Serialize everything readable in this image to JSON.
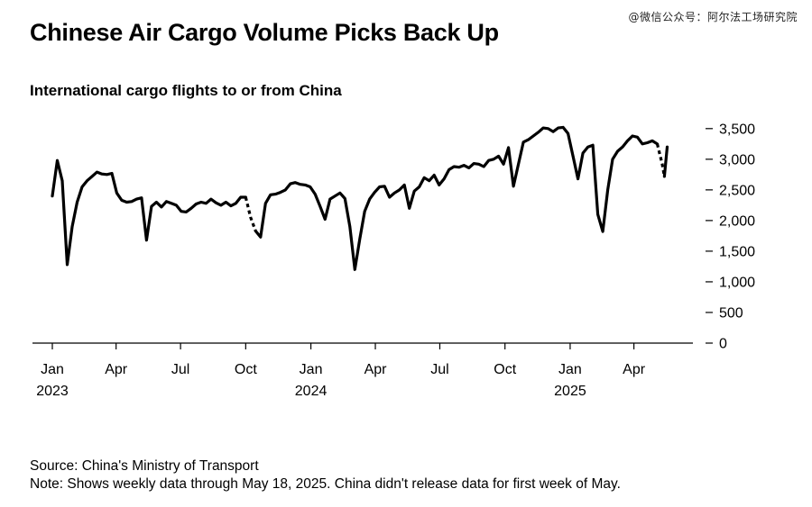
{
  "watermark": "@微信公众号：阿尔法工场研究院",
  "title": "Chinese Air Cargo Volume Picks Back Up",
  "subtitle": "International cargo flights to or from China",
  "source": "Source: China's Ministry of Transport",
  "note": "Note: Shows weekly data through May 18, 2025. China didn't release data for first week of May.",
  "chart_data": {
    "type": "line",
    "title": "Chinese Air Cargo Volume Picks Back Up",
    "subtitle": "International cargo flights to or from China",
    "ylim": [
      0,
      3600
    ],
    "yticks": [
      0,
      500,
      1000,
      1500,
      2000,
      2500,
      3000,
      3500
    ],
    "ytick_labels": [
      "0",
      "500",
      "1,000",
      "1,500",
      "2,000",
      "2,500",
      "3,000",
      "3,500"
    ],
    "xlim": [
      "2023-01-01",
      "2025-05-25"
    ],
    "xticks": [
      {
        "date": "2023-01-01",
        "label": "Jan",
        "year": "2023"
      },
      {
        "date": "2023-04-01",
        "label": "Apr",
        "year": ""
      },
      {
        "date": "2023-07-01",
        "label": "Jul",
        "year": ""
      },
      {
        "date": "2023-10-01",
        "label": "Oct",
        "year": ""
      },
      {
        "date": "2024-01-01",
        "label": "Jan",
        "year": "2024"
      },
      {
        "date": "2024-04-01",
        "label": "Apr",
        "year": ""
      },
      {
        "date": "2024-07-01",
        "label": "Jul",
        "year": ""
      },
      {
        "date": "2024-10-01",
        "label": "Oct",
        "year": ""
      },
      {
        "date": "2025-01-01",
        "label": "Jan",
        "year": "2025"
      },
      {
        "date": "2025-04-01",
        "label": "Apr",
        "year": ""
      }
    ],
    "grid": false,
    "series": [
      {
        "name": "",
        "color": "#000000",
        "segments": [
          {
            "style": "solid",
            "points": [
              [
                "2023-01-01",
                2400
              ],
              [
                "2023-01-08",
                2980
              ],
              [
                "2023-01-15",
                2650
              ],
              [
                "2023-01-22",
                1280
              ],
              [
                "2023-01-29",
                1900
              ],
              [
                "2023-02-05",
                2300
              ],
              [
                "2023-02-12",
                2550
              ],
              [
                "2023-02-19",
                2650
              ],
              [
                "2023-02-26",
                2720
              ],
              [
                "2023-03-05",
                2790
              ],
              [
                "2023-03-12",
                2760
              ],
              [
                "2023-03-19",
                2750
              ],
              [
                "2023-03-26",
                2770
              ],
              [
                "2023-04-02",
                2450
              ],
              [
                "2023-04-09",
                2330
              ],
              [
                "2023-04-16",
                2300
              ],
              [
                "2023-04-23",
                2310
              ],
              [
                "2023-04-30",
                2350
              ],
              [
                "2023-05-07",
                2370
              ],
              [
                "2023-05-14",
                1680
              ],
              [
                "2023-05-21",
                2230
              ],
              [
                "2023-05-28",
                2300
              ],
              [
                "2023-06-04",
                2220
              ],
              [
                "2023-06-11",
                2310
              ],
              [
                "2023-06-18",
                2280
              ],
              [
                "2023-06-25",
                2250
              ],
              [
                "2023-07-02",
                2150
              ],
              [
                "2023-07-09",
                2140
              ],
              [
                "2023-07-16",
                2200
              ],
              [
                "2023-07-23",
                2270
              ],
              [
                "2023-07-30",
                2300
              ],
              [
                "2023-08-06",
                2280
              ],
              [
                "2023-08-13",
                2350
              ],
              [
                "2023-08-20",
                2290
              ],
              [
                "2023-08-27",
                2250
              ],
              [
                "2023-09-03",
                2300
              ],
              [
                "2023-09-10",
                2240
              ],
              [
                "2023-09-17",
                2280
              ],
              [
                "2023-09-24",
                2380
              ],
              [
                "2023-10-01",
                2380
              ]
            ]
          },
          {
            "style": "dashed",
            "points": [
              [
                "2023-10-01",
                2380
              ],
              [
                "2023-10-08",
                2050
              ],
              [
                "2023-10-15",
                1830
              ]
            ]
          },
          {
            "style": "solid",
            "points": [
              [
                "2023-10-15",
                1830
              ],
              [
                "2023-10-22",
                1730
              ],
              [
                "2023-10-29",
                2280
              ],
              [
                "2023-11-05",
                2420
              ],
              [
                "2023-11-12",
                2430
              ],
              [
                "2023-11-19",
                2460
              ],
              [
                "2023-11-26",
                2500
              ],
              [
                "2023-12-03",
                2600
              ],
              [
                "2023-12-10",
                2620
              ],
              [
                "2023-12-17",
                2590
              ],
              [
                "2023-12-24",
                2580
              ],
              [
                "2023-12-31",
                2550
              ],
              [
                "2024-01-07",
                2430
              ],
              [
                "2024-01-14",
                2230
              ],
              [
                "2024-01-21",
                2020
              ],
              [
                "2024-01-28",
                2350
              ],
              [
                "2024-02-04",
                2400
              ],
              [
                "2024-02-11",
                2450
              ],
              [
                "2024-02-18",
                2360
              ],
              [
                "2024-02-25",
                1900
              ],
              [
                "2024-03-03",
                1200
              ],
              [
                "2024-03-10",
                1700
              ],
              [
                "2024-03-17",
                2150
              ],
              [
                "2024-03-24",
                2350
              ],
              [
                "2024-03-31",
                2460
              ],
              [
                "2024-04-07",
                2550
              ],
              [
                "2024-04-14",
                2560
              ],
              [
                "2024-04-21",
                2380
              ],
              [
                "2024-04-28",
                2450
              ],
              [
                "2024-05-05",
                2500
              ],
              [
                "2024-05-12",
                2580
              ],
              [
                "2024-05-19",
                2200
              ],
              [
                "2024-05-26",
                2480
              ],
              [
                "2024-06-02",
                2550
              ],
              [
                "2024-06-09",
                2700
              ],
              [
                "2024-06-16",
                2650
              ],
              [
                "2024-06-23",
                2740
              ],
              [
                "2024-06-30",
                2580
              ],
              [
                "2024-07-07",
                2680
              ],
              [
                "2024-07-14",
                2830
              ],
              [
                "2024-07-21",
                2880
              ],
              [
                "2024-07-28",
                2870
              ],
              [
                "2024-08-04",
                2900
              ],
              [
                "2024-08-11",
                2860
              ],
              [
                "2024-08-18",
                2930
              ],
              [
                "2024-08-25",
                2920
              ],
              [
                "2024-09-01",
                2880
              ],
              [
                "2024-09-08",
                2980
              ],
              [
                "2024-09-15",
                3000
              ],
              [
                "2024-09-22",
                3050
              ],
              [
                "2024-09-29",
                2920
              ],
              [
                "2024-10-06",
                3190
              ],
              [
                "2024-10-13",
                2560
              ],
              [
                "2024-10-20",
                2920
              ],
              [
                "2024-10-27",
                3280
              ],
              [
                "2024-11-03",
                3320
              ],
              [
                "2024-11-10",
                3380
              ],
              [
                "2024-11-17",
                3440
              ],
              [
                "2024-11-24",
                3510
              ],
              [
                "2024-12-01",
                3500
              ],
              [
                "2024-12-08",
                3450
              ],
              [
                "2024-12-15",
                3510
              ],
              [
                "2024-12-22",
                3520
              ],
              [
                "2024-12-29",
                3420
              ],
              [
                "2025-01-05",
                3050
              ],
              [
                "2025-01-12",
                2680
              ],
              [
                "2025-01-19",
                3100
              ],
              [
                "2025-01-26",
                3200
              ],
              [
                "2025-02-02",
                3230
              ],
              [
                "2025-02-09",
                2100
              ],
              [
                "2025-02-16",
                1820
              ],
              [
                "2025-02-23",
                2500
              ],
              [
                "2025-03-02",
                3000
              ],
              [
                "2025-03-09",
                3130
              ],
              [
                "2025-03-16",
                3200
              ],
              [
                "2025-03-23",
                3300
              ],
              [
                "2025-03-30",
                3380
              ],
              [
                "2025-04-06",
                3360
              ],
              [
                "2025-04-13",
                3250
              ],
              [
                "2025-04-20",
                3270
              ],
              [
                "2025-04-27",
                3300
              ],
              [
                "2025-05-04",
                3250
              ]
            ]
          },
          {
            "style": "dashed",
            "points": [
              [
                "2025-05-04",
                3250
              ],
              [
                "2025-05-11",
                2920
              ],
              [
                "2025-05-14",
                2720
              ]
            ]
          },
          {
            "style": "solid",
            "points": [
              [
                "2025-05-14",
                2720
              ],
              [
                "2025-05-18",
                3200
              ]
            ]
          }
        ]
      }
    ]
  }
}
